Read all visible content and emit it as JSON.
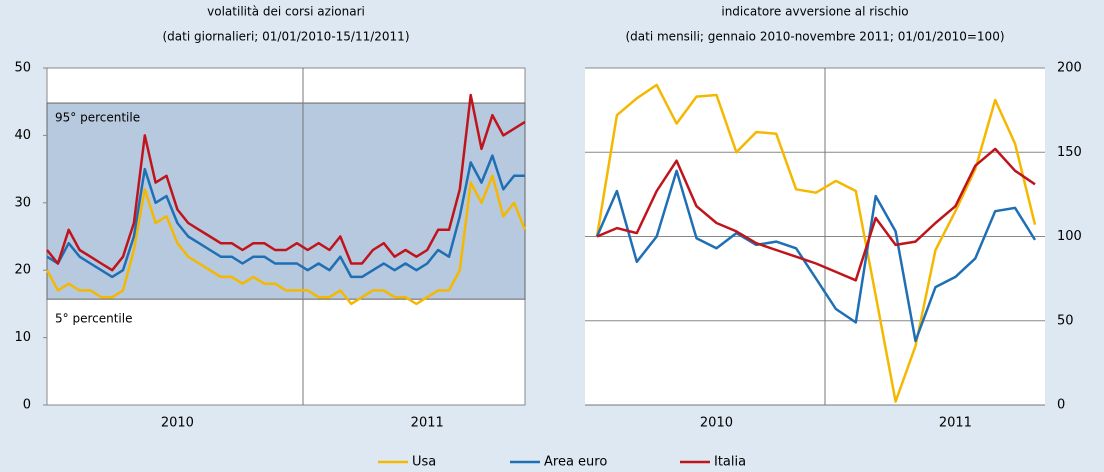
{
  "chart_data": [
    {
      "type": "line",
      "title": "volatilità dei corsi azionari",
      "subtitle": "(dati giornalieri; 01/01/2010-15/11/2011)",
      "categories": [
        null,
        null,
        null,
        null,
        null,
        null,
        null,
        null,
        null,
        null,
        null,
        null,
        "2010",
        null,
        null,
        null,
        null,
        null,
        null,
        null,
        null,
        null,
        null,
        null,
        null,
        null,
        null,
        null,
        null,
        null,
        null,
        null,
        null,
        null,
        null,
        "2011",
        null,
        null,
        null,
        null,
        null,
        null,
        null,
        null,
        null
      ],
      "series": [
        {
          "color": "#f5b800",
          "values": [
            20,
            17,
            18,
            17,
            17,
            16,
            16,
            17,
            23,
            32,
            27,
            28,
            24,
            22,
            21,
            20,
            19,
            19,
            18,
            19,
            18,
            18,
            17,
            17,
            17,
            16,
            16,
            17,
            15,
            16,
            17,
            17,
            16,
            16,
            15,
            16,
            17,
            17,
            20,
            33,
            30,
            34,
            28,
            30,
            26
          ]
        },
        {
          "color": "#1f6fb5",
          "values": [
            22,
            21,
            24,
            22,
            21,
            20,
            19,
            20,
            25,
            35,
            30,
            31,
            27,
            25,
            24,
            23,
            22,
            22,
            21,
            22,
            22,
            21,
            21,
            21,
            20,
            21,
            20,
            22,
            19,
            19,
            20,
            21,
            20,
            21,
            20,
            21,
            23,
            22,
            28,
            36,
            33,
            37,
            32,
            34,
            34
          ]
        },
        {
          "color": "#c0141c",
          "values": [
            23,
            21,
            26,
            23,
            22,
            21,
            20,
            22,
            27,
            40,
            33,
            34,
            29,
            27,
            26,
            25,
            24,
            24,
            23,
            24,
            24,
            23,
            23,
            24,
            23,
            24,
            23,
            25,
            21,
            21,
            23,
            24,
            22,
            23,
            22,
            23,
            26,
            26,
            32,
            46,
            38,
            43,
            40,
            41,
            42
          ]
        }
      ],
      "ylim": [
        0,
        50
      ],
      "yticks": [
        0,
        10,
        20,
        30,
        40,
        50
      ],
      "yaxis": "left",
      "grid": false,
      "band": {
        "range": [
          15.7,
          44.8
        ],
        "color": "#b7c9de",
        "labels": [
          "95° percentile",
          "5° percentile"
        ]
      }
    },
    {
      "type": "line",
      "title": "indicatore avversione al rischio",
      "subtitle": "(dati mensili; gennaio 2010-novembre 2011; 01/01/2010=100)",
      "categories": [
        null,
        null,
        null,
        null,
        null,
        null,
        "2010",
        null,
        null,
        null,
        null,
        null,
        null,
        null,
        null,
        null,
        null,
        null,
        "2011",
        null,
        null,
        null,
        null
      ],
      "series": [
        {
          "color": "#f5b800",
          "values": [
            100,
            172,
            182,
            190,
            167,
            183,
            184,
            150,
            162,
            161,
            128,
            126,
            133,
            127,
            65,
            2,
            35,
            92,
            115,
            140,
            181,
            155,
            107
          ]
        },
        {
          "color": "#1f6fb5",
          "values": [
            100,
            127,
            85,
            100,
            139,
            99,
            93,
            102,
            95,
            97,
            93,
            75,
            57,
            49,
            124,
            103,
            38,
            70,
            76,
            87,
            115,
            117,
            98
          ]
        },
        {
          "color": "#c0141c",
          "values": [
            100,
            105,
            102,
            127,
            145,
            118,
            108,
            103,
            96,
            92,
            88,
            84,
            79,
            74,
            111,
            95,
            97,
            108,
            118,
            142,
            152,
            139,
            131
          ]
        }
      ],
      "ylim": [
        0,
        200
      ],
      "yticks": [
        0,
        50,
        100,
        150,
        200
      ],
      "yaxis": "right",
      "grid": true
    }
  ],
  "legend": [
    {
      "name": "Usa",
      "color": "#f5b800"
    },
    {
      "name": "Area euro",
      "color": "#1f6fb5"
    },
    {
      "name": "Italia",
      "color": "#c0141c"
    }
  ]
}
